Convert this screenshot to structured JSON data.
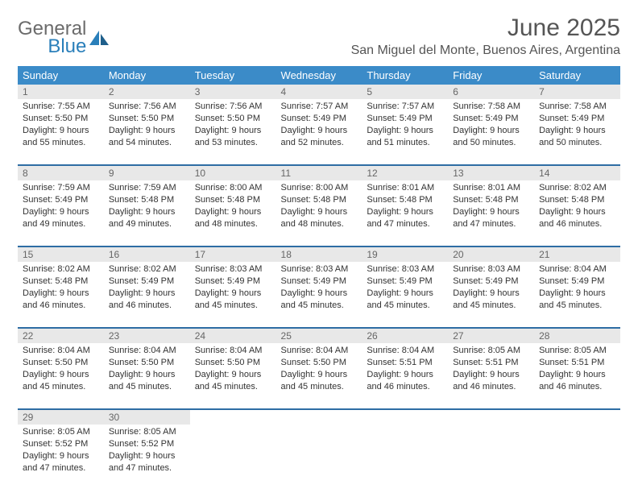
{
  "logo": {
    "general": "General",
    "blue": "Blue"
  },
  "header": {
    "month_title": "June 2025",
    "location": "San Miguel del Monte, Buenos Aires, Argentina"
  },
  "colors": {
    "header_bg": "#3b8bc8",
    "row_divider": "#2e6da4",
    "daynum_bg": "#e8e8e8",
    "text": "#333333",
    "muted": "#666666"
  },
  "day_headers": [
    "Sunday",
    "Monday",
    "Tuesday",
    "Wednesday",
    "Thursday",
    "Friday",
    "Saturday"
  ],
  "weeks": [
    [
      {
        "n": "1",
        "sr": "7:55 AM",
        "ss": "5:50 PM",
        "dl": "9 hours and 55 minutes."
      },
      {
        "n": "2",
        "sr": "7:56 AM",
        "ss": "5:50 PM",
        "dl": "9 hours and 54 minutes."
      },
      {
        "n": "3",
        "sr": "7:56 AM",
        "ss": "5:50 PM",
        "dl": "9 hours and 53 minutes."
      },
      {
        "n": "4",
        "sr": "7:57 AM",
        "ss": "5:49 PM",
        "dl": "9 hours and 52 minutes."
      },
      {
        "n": "5",
        "sr": "7:57 AM",
        "ss": "5:49 PM",
        "dl": "9 hours and 51 minutes."
      },
      {
        "n": "6",
        "sr": "7:58 AM",
        "ss": "5:49 PM",
        "dl": "9 hours and 50 minutes."
      },
      {
        "n": "7",
        "sr": "7:58 AM",
        "ss": "5:49 PM",
        "dl": "9 hours and 50 minutes."
      }
    ],
    [
      {
        "n": "8",
        "sr": "7:59 AM",
        "ss": "5:49 PM",
        "dl": "9 hours and 49 minutes."
      },
      {
        "n": "9",
        "sr": "7:59 AM",
        "ss": "5:48 PM",
        "dl": "9 hours and 49 minutes."
      },
      {
        "n": "10",
        "sr": "8:00 AM",
        "ss": "5:48 PM",
        "dl": "9 hours and 48 minutes."
      },
      {
        "n": "11",
        "sr": "8:00 AM",
        "ss": "5:48 PM",
        "dl": "9 hours and 48 minutes."
      },
      {
        "n": "12",
        "sr": "8:01 AM",
        "ss": "5:48 PM",
        "dl": "9 hours and 47 minutes."
      },
      {
        "n": "13",
        "sr": "8:01 AM",
        "ss": "5:48 PM",
        "dl": "9 hours and 47 minutes."
      },
      {
        "n": "14",
        "sr": "8:02 AM",
        "ss": "5:48 PM",
        "dl": "9 hours and 46 minutes."
      }
    ],
    [
      {
        "n": "15",
        "sr": "8:02 AM",
        "ss": "5:48 PM",
        "dl": "9 hours and 46 minutes."
      },
      {
        "n": "16",
        "sr": "8:02 AM",
        "ss": "5:49 PM",
        "dl": "9 hours and 46 minutes."
      },
      {
        "n": "17",
        "sr": "8:03 AM",
        "ss": "5:49 PM",
        "dl": "9 hours and 45 minutes."
      },
      {
        "n": "18",
        "sr": "8:03 AM",
        "ss": "5:49 PM",
        "dl": "9 hours and 45 minutes."
      },
      {
        "n": "19",
        "sr": "8:03 AM",
        "ss": "5:49 PM",
        "dl": "9 hours and 45 minutes."
      },
      {
        "n": "20",
        "sr": "8:03 AM",
        "ss": "5:49 PM",
        "dl": "9 hours and 45 minutes."
      },
      {
        "n": "21",
        "sr": "8:04 AM",
        "ss": "5:49 PM",
        "dl": "9 hours and 45 minutes."
      }
    ],
    [
      {
        "n": "22",
        "sr": "8:04 AM",
        "ss": "5:50 PM",
        "dl": "9 hours and 45 minutes."
      },
      {
        "n": "23",
        "sr": "8:04 AM",
        "ss": "5:50 PM",
        "dl": "9 hours and 45 minutes."
      },
      {
        "n": "24",
        "sr": "8:04 AM",
        "ss": "5:50 PM",
        "dl": "9 hours and 45 minutes."
      },
      {
        "n": "25",
        "sr": "8:04 AM",
        "ss": "5:50 PM",
        "dl": "9 hours and 45 minutes."
      },
      {
        "n": "26",
        "sr": "8:04 AM",
        "ss": "5:51 PM",
        "dl": "9 hours and 46 minutes."
      },
      {
        "n": "27",
        "sr": "8:05 AM",
        "ss": "5:51 PM",
        "dl": "9 hours and 46 minutes."
      },
      {
        "n": "28",
        "sr": "8:05 AM",
        "ss": "5:51 PM",
        "dl": "9 hours and 46 minutes."
      }
    ],
    [
      {
        "n": "29",
        "sr": "8:05 AM",
        "ss": "5:52 PM",
        "dl": "9 hours and 47 minutes."
      },
      {
        "n": "30",
        "sr": "8:05 AM",
        "ss": "5:52 PM",
        "dl": "9 hours and 47 minutes."
      },
      null,
      null,
      null,
      null,
      null
    ]
  ],
  "labels": {
    "sunrise": "Sunrise:",
    "sunset": "Sunset:",
    "daylight": "Daylight:"
  }
}
